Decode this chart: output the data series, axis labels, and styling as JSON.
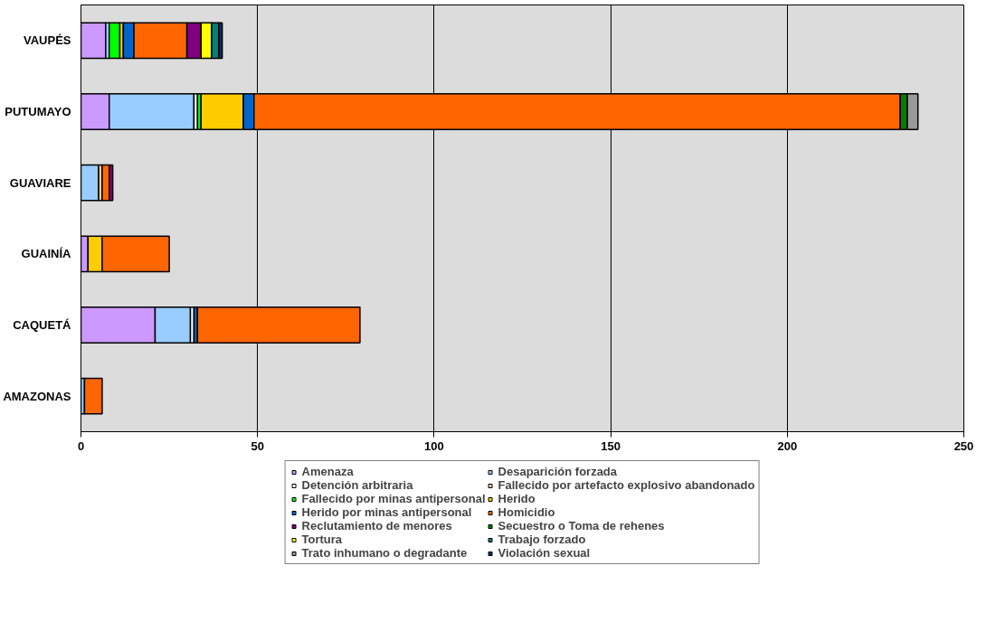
{
  "chart_data": {
    "type": "bar",
    "orientation": "horizontal",
    "stacked": true,
    "categories": [
      "VAUPÉS",
      "PUTUMAYO",
      "GUAVIARE",
      "GUAINÍA",
      "CAQUETÁ",
      "AMAZONAS"
    ],
    "xlim": [
      0,
      250
    ],
    "xticks": [
      0,
      50,
      100,
      150,
      200,
      250
    ],
    "grid": "x",
    "legend": "bottom",
    "series": [
      {
        "name": "Amenaza",
        "color": "#cc99ff",
        "values": [
          7,
          8,
          null,
          2,
          21,
          null
        ]
      },
      {
        "name": "Desaparición forzada",
        "color": "#99ccff",
        "values": [
          1,
          24,
          5,
          null,
          10,
          1
        ]
      },
      {
        "name": "Detención arbitraria",
        "color": "#ffffff",
        "values": [
          null,
          1,
          null,
          null,
          1,
          null
        ]
      },
      {
        "name": "Fallecido por artefacto explosivo abandonado",
        "color": "#ffcc99",
        "values": [
          null,
          null,
          1,
          null,
          null,
          null
        ]
      },
      {
        "name": "Fallecido por minas antipersonal",
        "color": "#00ff00",
        "values": [
          3,
          1,
          null,
          null,
          null,
          null
        ]
      },
      {
        "name": "Herido",
        "color": "#ffcc00",
        "values": [
          1,
          12,
          null,
          4,
          null,
          null
        ]
      },
      {
        "name": "Herido por minas antipersonal",
        "color": "#0066cc",
        "values": [
          3,
          3,
          null,
          null,
          1,
          null
        ]
      },
      {
        "name": "Homicidio",
        "color": "#ff6600",
        "values": [
          15,
          183,
          2,
          19,
          46,
          5
        ]
      },
      {
        "name": "Reclutamiento de menores",
        "color": "#800080",
        "values": [
          4,
          null,
          1,
          null,
          null,
          null
        ]
      },
      {
        "name": "Secuestro o Toma de rehenes",
        "color": "#008000",
        "values": [
          null,
          2,
          null,
          null,
          null,
          null
        ]
      },
      {
        "name": "Tortura",
        "color": "#ffff00",
        "values": [
          3,
          null,
          null,
          null,
          null,
          null
        ]
      },
      {
        "name": "Trabajo forzado",
        "color": "#008080",
        "values": [
          2,
          null,
          null,
          null,
          null,
          null
        ]
      },
      {
        "name": "Trato inhumano o degradante",
        "color": "#999999",
        "values": [
          null,
          3,
          null,
          null,
          null,
          null
        ]
      },
      {
        "name": "Violación sexual",
        "color": "#003366",
        "values": [
          1,
          null,
          null,
          null,
          null,
          null
        ]
      }
    ]
  }
}
